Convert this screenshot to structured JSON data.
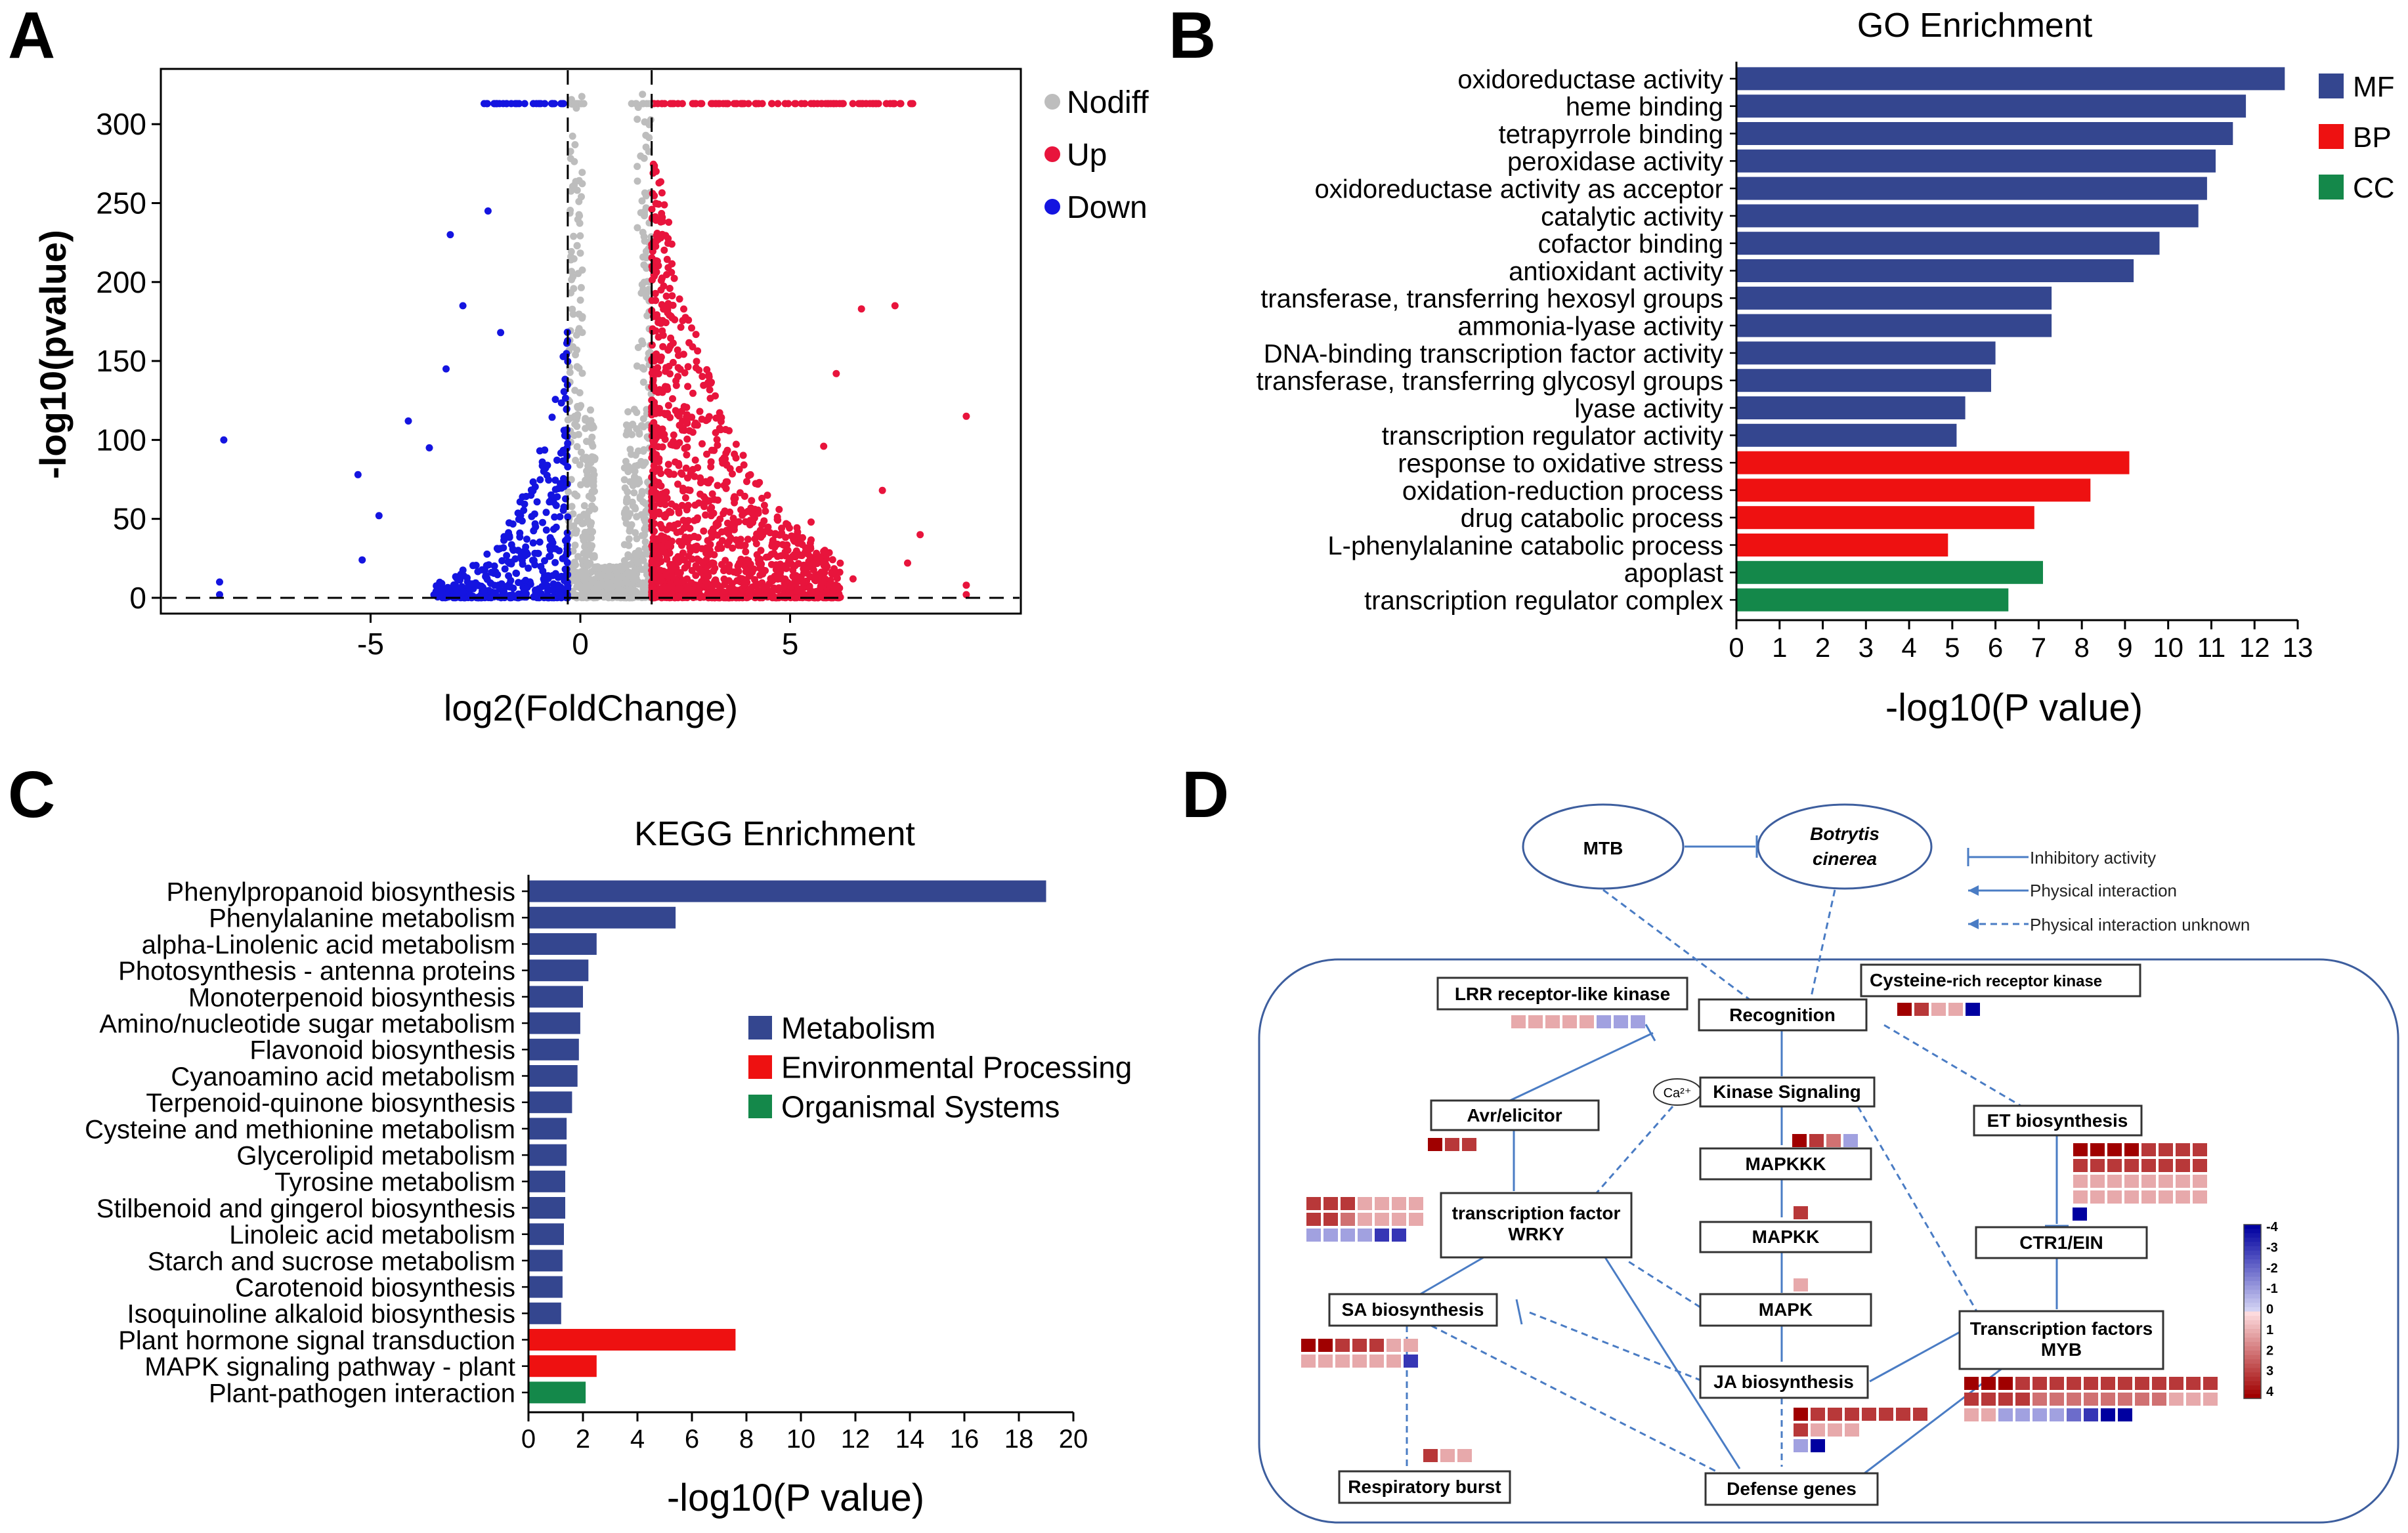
{
  "colors": {
    "nodiff": "#bdbdbd",
    "up": "#e8143c",
    "down": "#1414e0",
    "mf": "#34468f",
    "bp": "#ee1111",
    "cc": "#14884a",
    "arrow": "#4a7cc4",
    "box_border": "#333333",
    "region_border": "#3d5e9e"
  },
  "panels": {
    "a": "A",
    "b": "B",
    "c": "C",
    "d": "D"
  },
  "chart_data": [
    {
      "id": "A",
      "type": "scatter",
      "title": "",
      "xlabel": "log2(FoldChange)",
      "ylabel": "-log10(pvalue)",
      "xlim": [
        -10,
        10.5
      ],
      "ylim": [
        -10,
        335
      ],
      "xticks": [
        -5,
        0,
        5
      ],
      "yticks": [
        0,
        50,
        100,
        150,
        200,
        250,
        300
      ],
      "thresholds": {
        "x": [
          -0.3,
          1.7
        ],
        "y": 0
      },
      "legend": [
        {
          "name": "Nodiff",
          "color_key": "nodiff"
        },
        {
          "name": "Up",
          "color_key": "up"
        },
        {
          "name": "Down",
          "color_key": "down"
        }
      ],
      "outliers": {
        "down": [
          [
            -8.5,
            100
          ],
          [
            -5.3,
            78
          ],
          [
            -4.8,
            52
          ],
          [
            -5.2,
            24
          ],
          [
            -3.1,
            230
          ],
          [
            -2.8,
            185
          ],
          [
            -3.2,
            145
          ],
          [
            -3.6,
            95
          ],
          [
            -2.2,
            245
          ],
          [
            -1.9,
            168
          ],
          [
            -4.1,
            112
          ],
          [
            -8.6,
            10
          ],
          [
            -8.6,
            2
          ]
        ],
        "up": [
          [
            9.2,
            115
          ],
          [
            9.2,
            2
          ],
          [
            9.2,
            8
          ],
          [
            7.5,
            185
          ],
          [
            6.7,
            183
          ],
          [
            6.1,
            142
          ],
          [
            8.1,
            40
          ],
          [
            7.2,
            68
          ],
          [
            6.5,
            12
          ],
          [
            5.8,
            96
          ],
          [
            5.5,
            48
          ],
          [
            7.8,
            22
          ]
        ]
      }
    },
    {
      "id": "B",
      "type": "bar",
      "orientation": "horizontal",
      "title": "GO Enrichment",
      "xlabel": "-log10(P value)",
      "ylabel": "",
      "xlim": [
        0,
        13
      ],
      "xticks": [
        0,
        1,
        2,
        3,
        4,
        5,
        6,
        7,
        8,
        9,
        10,
        11,
        12,
        13
      ],
      "legend": [
        {
          "name": "MF",
          "color_key": "mf"
        },
        {
          "name": "BP",
          "color_key": "bp"
        },
        {
          "name": "CC",
          "color_key": "cc"
        }
      ],
      "categories": [
        "oxidoreductase activity",
        "heme binding",
        "tetrapyrrole binding",
        "peroxidase activity",
        "oxidoreductase activity as acceptor",
        "catalytic activity",
        "cofactor binding",
        "antioxidant activity",
        "transferase, transferring hexosyl groups",
        "ammonia-lyase activity",
        "DNA-binding transcription factor activity",
        "transferase, transferring glycosyl groups",
        "lyase activity",
        "transcription regulator activity",
        "response to oxidative stress",
        "oxidation-reduction process",
        "drug catabolic process",
        "L-phenylalanine catabolic process",
        "apoplast",
        "transcription regulator complex"
      ],
      "values": [
        12.7,
        11.8,
        11.5,
        11.1,
        10.9,
        10.7,
        9.8,
        9.2,
        7.3,
        7.3,
        6.0,
        5.9,
        5.3,
        5.1,
        9.1,
        8.2,
        6.9,
        4.9,
        7.1,
        6.3
      ],
      "groups": [
        "mf",
        "mf",
        "mf",
        "mf",
        "mf",
        "mf",
        "mf",
        "mf",
        "mf",
        "mf",
        "mf",
        "mf",
        "mf",
        "mf",
        "bp",
        "bp",
        "bp",
        "bp",
        "cc",
        "cc"
      ]
    },
    {
      "id": "C",
      "type": "bar",
      "orientation": "horizontal",
      "title": "KEGG Enrichment",
      "xlabel": "-log10(P value)",
      "ylabel": "",
      "xlim": [
        0,
        20
      ],
      "xticks": [
        0,
        2,
        4,
        6,
        8,
        10,
        12,
        14,
        16,
        18,
        20
      ],
      "legend": [
        {
          "name": "Metabolism",
          "color_key": "mf"
        },
        {
          "name": "Environmental Processing",
          "color_key": "bp"
        },
        {
          "name": "Organismal Systems",
          "color_key": "cc"
        }
      ],
      "categories": [
        "Phenylpropanoid biosynthesis",
        "Phenylalanine metabolism",
        "alpha-Linolenic acid metabolism",
        "Photosynthesis - antenna proteins",
        "Monoterpenoid biosynthesis",
        "Amino/nucleotide sugar metabolism",
        "Flavonoid biosynthesis",
        "Cyanoamino acid metabolism",
        "Terpenoid-quinone biosynthesis",
        "Cysteine and methionine metabolism",
        "Glycerolipid metabolism",
        "Tyrosine metabolism",
        "Stilbenoid and gingerol biosynthesis",
        "Linoleic acid metabolism",
        "Starch and sucrose metabolism",
        "Carotenoid biosynthesis",
        "Isoquinoline alkaloid biosynthesis",
        "Plant hormone signal transduction",
        "MAPK signaling pathway - plant",
        "Plant-pathogen interaction"
      ],
      "values": [
        19.0,
        5.4,
        2.5,
        2.2,
        2.0,
        1.9,
        1.85,
        1.8,
        1.6,
        1.4,
        1.4,
        1.35,
        1.35,
        1.3,
        1.25,
        1.25,
        1.2,
        7.6,
        2.5,
        2.1
      ],
      "groups": [
        "mf",
        "mf",
        "mf",
        "mf",
        "mf",
        "mf",
        "mf",
        "mf",
        "mf",
        "mf",
        "mf",
        "mf",
        "mf",
        "mf",
        "mf",
        "mf",
        "mf",
        "bp",
        "bp",
        "cc"
      ]
    }
  ],
  "diagram": {
    "mtb": "MTB",
    "botrytis": "Botrytis cinerea",
    "botrytis_line1": "Botrytis",
    "botrytis_line2": "cinerea",
    "legend_inhibitory": "Inhibitory activity",
    "legend_physical": "Physical interaction",
    "legend_unknown": "Physical interaction unknown",
    "nodes": {
      "lrr": "LRR receptor-like kinase",
      "cysteine_a": "Cysteine-",
      "cysteine_b": "rich receptor kinase",
      "recognition": "Recognition",
      "ca": "Ca²⁺",
      "kinase": "Kinase Signaling",
      "avr": "Avr/elicitor",
      "et": "ET biosynthesis",
      "mapkkk": "MAPKKK",
      "mapkk": "MAPKK",
      "mapk": "MAPK",
      "wrky_1": "transcription factor",
      "wrky_2": "WRKY",
      "ctr": "CTR1/EIN",
      "sa": "SA biosynthesis",
      "myb_1": "Transcription factors",
      "myb_2": "MYB",
      "ja": "JA biosynthesis",
      "resp": "Respiratory burst",
      "defense": "Defense genes"
    },
    "color_scale_labels": [
      "-4",
      "-3",
      "-2",
      "-1",
      "0",
      "1",
      "2",
      "3",
      "4"
    ],
    "heatmaps": {
      "lrr": [
        [
          1,
          1,
          1,
          1,
          1,
          -1,
          -1,
          -1
        ]
      ],
      "cys": [
        [
          4,
          3,
          1,
          1,
          -4
        ]
      ],
      "avr": [
        [
          4,
          3,
          3
        ]
      ],
      "kinase": [
        [
          4,
          3,
          2,
          -1
        ]
      ],
      "mapk": [
        [
          3
        ]
      ],
      "mapkk": [
        [
          1
        ]
      ],
      "wrky_left": [
        [
          3,
          3,
          3,
          1,
          1,
          1,
          1
        ],
        [
          3,
          3,
          2,
          1,
          1,
          1,
          1
        ],
        [
          -1,
          -1,
          -1,
          -1,
          -3,
          -3
        ]
      ],
      "et": [
        [
          4,
          4,
          4,
          4,
          3,
          3,
          3,
          3
        ],
        [
          3,
          3,
          3,
          3,
          3,
          3,
          3,
          3
        ],
        [
          1,
          1,
          1,
          1,
          1,
          1,
          1,
          1
        ],
        [
          1,
          1,
          1,
          1,
          1,
          1,
          1,
          1
        ]
      ],
      "ctr": [
        [
          -4
        ]
      ],
      "sa": [
        [
          4,
          4,
          3,
          3,
          3,
          1,
          1
        ],
        [
          1,
          1,
          1,
          1,
          1,
          1,
          -3
        ]
      ],
      "myb": [
        [
          4,
          4,
          4,
          3,
          3,
          3,
          3,
          3,
          3,
          3,
          3,
          3,
          3,
          3,
          3
        ],
        [
          3,
          3,
          3,
          3,
          2,
          2,
          2,
          2,
          2,
          2,
          2,
          2,
          1,
          1,
          1
        ],
        [
          1,
          1,
          -1,
          -1,
          -1,
          -1,
          -2,
          -3,
          -4,
          -4
        ]
      ],
      "ja": [
        [
          4,
          3,
          3,
          3,
          3,
          3,
          3,
          3
        ],
        [
          3,
          1,
          1,
          1
        ],
        [
          -1,
          -4
        ]
      ],
      "resp": [
        [
          3,
          1,
          1
        ]
      ]
    }
  }
}
